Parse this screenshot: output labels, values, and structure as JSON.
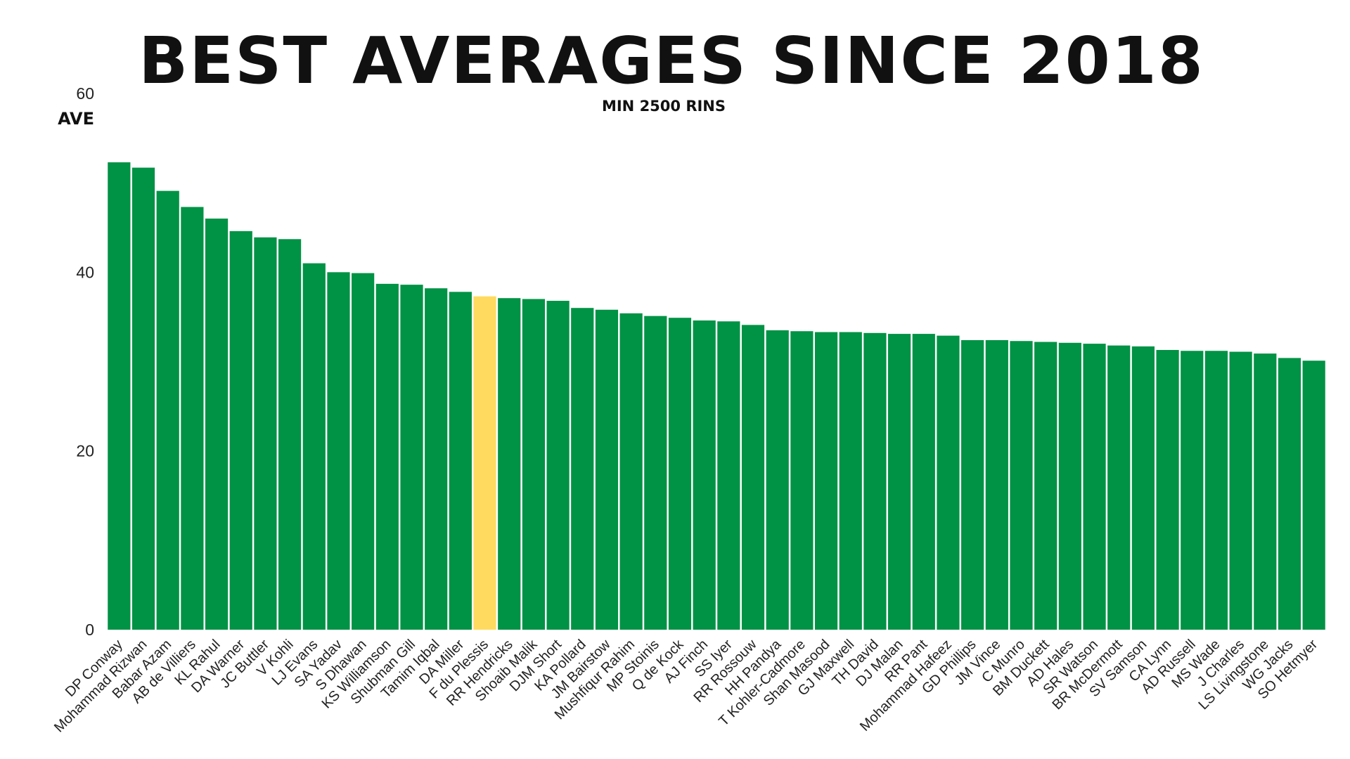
{
  "chart_data": {
    "type": "bar",
    "title": "BEST AVERAGES SINCE 2018",
    "subtitle": "MIN 2500 RINS",
    "ylabel": "AVE",
    "ylim": [
      0,
      60
    ],
    "yticks": [
      0,
      20,
      40,
      60
    ],
    "grid": false,
    "colors": {
      "bar": "#009245",
      "highlight": "#FFDA5E"
    },
    "highlight_category": "F du Plessis",
    "categories": [
      "DP Conway",
      "Mohammad Rizwan",
      "Babar Azam",
      "AB de Villiers",
      "KL Rahul",
      "DA Warner",
      "JC Buttler",
      "V Kohli",
      "LJ Evans",
      "SA Yadav",
      "S Dhawan",
      "KS Williamson",
      "Shubman Gill",
      "Tamim Iqbal",
      "DA Miller",
      "F du Plessis",
      "RR Hendricks",
      "Shoaib Malik",
      "DJM Short",
      "KA Pollard",
      "JM Bairstow",
      "Mushfiqur Rahim",
      "MP Stoinis",
      "Q de Kock",
      "AJ Finch",
      "SS Iyer",
      "RR Rossouw",
      "HH Pandya",
      "T Kohler-Cadmore",
      "Shan Masood",
      "GJ Maxwell",
      "TH David",
      "DJ Malan",
      "RR Pant",
      "Mohammad Hafeez",
      "GD Phillips",
      "JM Vince",
      "C Munro",
      "BM Duckett",
      "AD Hales",
      "SR Watson",
      "BR McDermott",
      "SV Samson",
      "CA Lynn",
      "AD Russell",
      "MS Wade",
      "J Charles",
      "LS Livingstone",
      "WG Jacks",
      "SO Hetmyer"
    ],
    "values": [
      52.3,
      51.7,
      49.1,
      47.3,
      46.0,
      44.6,
      43.9,
      43.7,
      41.0,
      40.0,
      39.9,
      38.7,
      38.6,
      38.2,
      37.8,
      37.3,
      37.1,
      37.0,
      36.8,
      36.0,
      35.8,
      35.4,
      35.1,
      34.9,
      34.6,
      34.5,
      34.1,
      33.5,
      33.4,
      33.3,
      33.3,
      33.2,
      33.1,
      33.1,
      32.9,
      32.4,
      32.4,
      32.3,
      32.2,
      32.1,
      32.0,
      31.8,
      31.7,
      31.3,
      31.2,
      31.2,
      31.1,
      30.9,
      30.4,
      30.1
    ]
  }
}
